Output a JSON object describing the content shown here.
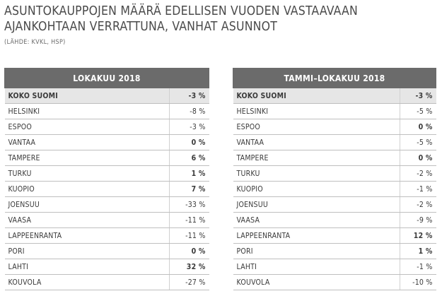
{
  "title_line1": "ASUNTOKAUPPOJEN MÄÄRÄ EDELLISEN VUODEN VASTAAVAAN",
  "title_line2": "AJANKOHTAAN VERRATTUNA, VANHAT ASUNNOT",
  "source": "(LÄHDE: KVKL, HSP)",
  "tables": [
    {
      "header": "LOKAKUU 2018",
      "rows": [
        {
          "city": "KOKO SUOMI",
          "value": "-3 %"
        },
        {
          "city": "HELSINKI",
          "value": "-8 %"
        },
        {
          "city": "ESPOO",
          "value": "-3 %"
        },
        {
          "city": "VANTAA",
          "value": "0 %"
        },
        {
          "city": "TAMPERE",
          "value": "6 %"
        },
        {
          "city": "TURKU",
          "value": "1 %"
        },
        {
          "city": "KUOPIO",
          "value": "7 %"
        },
        {
          "city": "JOENSUU",
          "value": "-33 %"
        },
        {
          "city": "VAASA",
          "value": "-11 %"
        },
        {
          "city": "LAPPEENRANTA",
          "value": "-11 %"
        },
        {
          "city": "PORI",
          "value": "0 %"
        },
        {
          "city": "LAHTI",
          "value": "32 %"
        },
        {
          "city": "KOUVOLA",
          "value": "-27 %"
        }
      ]
    },
    {
      "header": "TAMMI–LOKAKUU 2018",
      "rows": [
        {
          "city": "KOKO SUOMI",
          "value": "-3 %"
        },
        {
          "city": "HELSINKI",
          "value": "-5 %"
        },
        {
          "city": "ESPOO",
          "value": "0 %"
        },
        {
          "city": "VANTAA",
          "value": "-5 %"
        },
        {
          "city": "TAMPERE",
          "value": "0 %"
        },
        {
          "city": "TURKU",
          "value": "-2 %"
        },
        {
          "city": "KUOPIO",
          "value": "-1 %"
        },
        {
          "city": "JOENSUU",
          "value": "-2 %"
        },
        {
          "city": "VAASA",
          "value": "-9 %"
        },
        {
          "city": "LAPPEENRANTA",
          "value": "12 %"
        },
        {
          "city": "PORI",
          "value": "1 %"
        },
        {
          "city": "LAHTI",
          "value": "-1 %"
        },
        {
          "city": "KOUVOLA",
          "value": "-10 %"
        }
      ]
    }
  ]
}
